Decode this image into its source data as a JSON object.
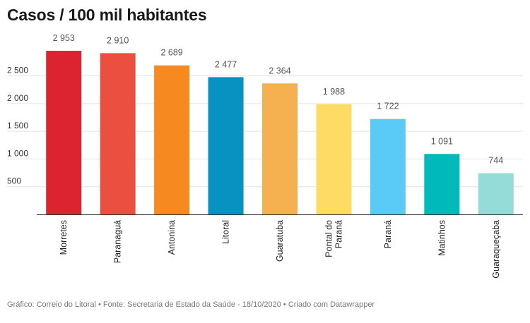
{
  "title": "Casos / 100 mil habitantes",
  "footer": "Gráfico: Correio do Litoral • Fonte: Secretaria de Estado da Saúde - 18/10/2020 • Criado com Datawrapper",
  "chart_data": {
    "type": "bar",
    "title": "Casos / 100 mil habitantes",
    "categories": [
      "Morretes",
      "Paranaguá",
      "Antonina",
      "Litoral",
      "Guaratuba",
      "Pontal do Paraná",
      "Paraná",
      "Matinhos",
      "Guaraqueçaba"
    ],
    "category_lines": [
      [
        "Morretes"
      ],
      [
        "Paranaguá"
      ],
      [
        "Antonina"
      ],
      [
        "Litoral"
      ],
      [
        "Guaratuba"
      ],
      [
        "Pontal do",
        "Paraná"
      ],
      [
        "Paraná"
      ],
      [
        "Matinhos"
      ],
      [
        "Guaraqueçaba"
      ]
    ],
    "values": [
      2953,
      2910,
      2689,
      2477,
      2364,
      1988,
      1722,
      1091,
      744
    ],
    "value_labels": [
      "2 953",
      "2 910",
      "2 689",
      "2 477",
      "2 364",
      "1 988",
      "1 722",
      "1 091",
      "744"
    ],
    "colors": [
      "#dc2430",
      "#eb4f3f",
      "#f6891f",
      "#0892c1",
      "#f5b04f",
      "#fedc63",
      "#5acaf6",
      "#00b9b9",
      "#95dcd8"
    ],
    "yticks": [
      500,
      1000,
      1500,
      2000,
      2500
    ],
    "ytick_labels": [
      "500",
      "1 000",
      "1 500",
      "2 000",
      "2 500"
    ],
    "ylim": [
      0,
      2953
    ],
    "grid": true,
    "legend": "none",
    "xlabel": "",
    "ylabel": ""
  }
}
